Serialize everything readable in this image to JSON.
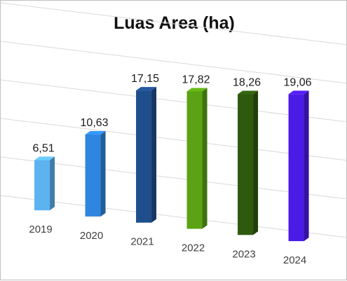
{
  "chart_data": {
    "type": "bar",
    "title": "Luas Area (ha)",
    "xlabel": "",
    "ylabel": "",
    "categories": [
      "2019",
      "2020",
      "2021",
      "2022",
      "2023",
      "2024"
    ],
    "values": [
      6.51,
      10.63,
      17.15,
      17.82,
      18.26,
      19.06
    ],
    "data_labels": [
      "6,51",
      "10,63",
      "17,15",
      "17,82",
      "18,26",
      "19,06"
    ],
    "colors": [
      "#5cb3f0",
      "#2f86e0",
      "#1f4e8c",
      "#5aa314",
      "#2e5a0e",
      "#4a1ae6"
    ],
    "ylim": [
      0,
      25
    ],
    "grid": true,
    "legend": "none",
    "style": "3d-column"
  }
}
